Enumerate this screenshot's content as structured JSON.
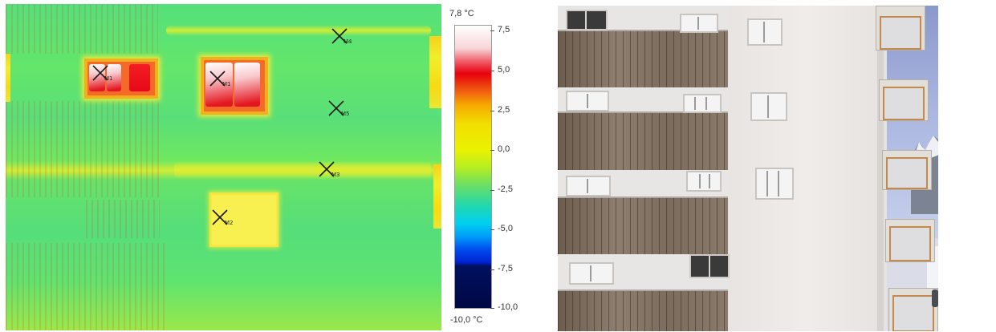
{
  "colorbar": {
    "max_label": "7,8 °C",
    "min_label": "-10,0 °C",
    "ticks": [
      "7,5",
      "5,0",
      "2,5",
      "0,0",
      "-2,5",
      "-5,0",
      "-7,5",
      "-10,0"
    ]
  },
  "markers": [
    {
      "id": "m1",
      "label": "M1"
    },
    {
      "id": "m2",
      "label": "M1"
    },
    {
      "id": "m3",
      "label": "M2"
    },
    {
      "id": "m4",
      "label": "M3"
    },
    {
      "id": "m5",
      "label": "M4"
    },
    {
      "id": "m6",
      "label": "M5"
    }
  ],
  "colors": {
    "facade_green": "#5fe470",
    "hot_red": "#e8000e",
    "warm_yellow": "#f2e000",
    "sky_blue": "#b8c4e8",
    "snow_white": "#f4f6fa"
  }
}
